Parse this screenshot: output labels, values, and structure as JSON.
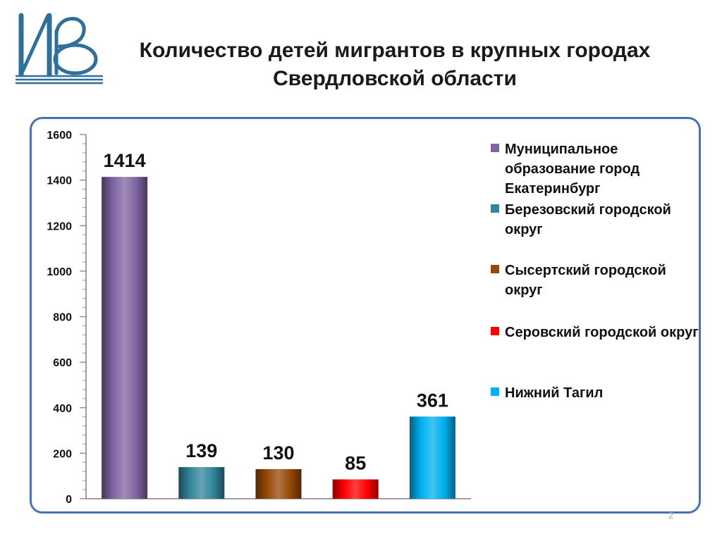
{
  "slide": {
    "title": "Количество детей мигрантов в крупных городах Свердловской области",
    "slide_number": "2"
  },
  "chart_data": {
    "type": "bar",
    "title": "",
    "xlabel": "",
    "ylabel": "",
    "ylim": [
      0,
      1600
    ],
    "yticks": [
      0,
      200,
      400,
      600,
      800,
      1000,
      1200,
      1400,
      1600
    ],
    "grid": false,
    "legend_position": "right",
    "data_labels": true,
    "series": [
      {
        "name": "Муниципальное образование  город Екатеринбург",
        "value": 1414,
        "color": "#8064a2"
      },
      {
        "name": "Березовский городской округ",
        "value": 139,
        "color": "#31859c"
      },
      {
        "name": "Сысертский городской округ",
        "value": 130,
        "color": "#974806"
      },
      {
        "name": "Серовский городской округ",
        "value": 85,
        "color": "#ff0000"
      },
      {
        "name": "Нижний Тагил",
        "value": 361,
        "color": "#00b0f0"
      }
    ]
  }
}
